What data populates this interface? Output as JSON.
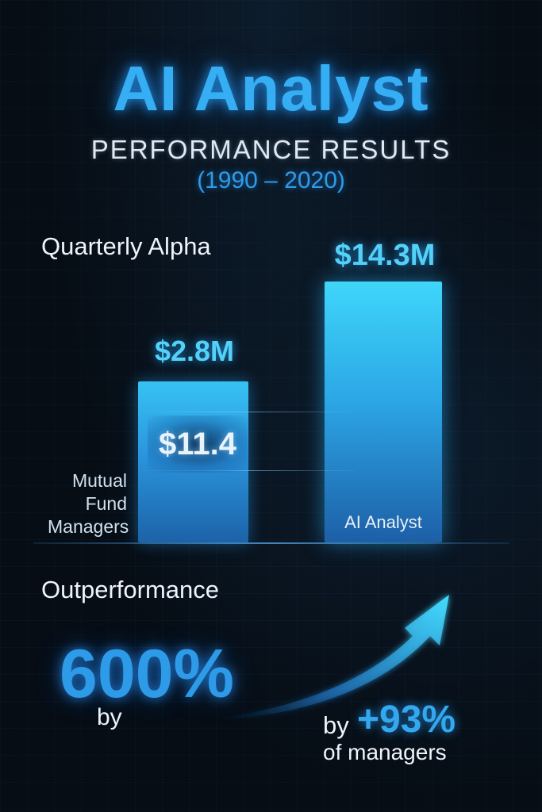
{
  "header": {
    "title": "AI Analyst",
    "subtitle": "PERFORMANCE RESULTS",
    "period": "(1990 – 2020)"
  },
  "chart_data": {
    "type": "bar",
    "title": "Quarterly Alpha",
    "categories": [
      "Mutual Fund Managers",
      "AI Analyst"
    ],
    "values": [
      2.8,
      14.3
    ],
    "value_labels": [
      "$2.8M",
      "$14.3M"
    ],
    "inner_label": "$11.4",
    "xlabel": "",
    "ylabel": "",
    "grid": false,
    "legend": "none"
  },
  "category_labels": {
    "mutual_line1": "Mutual",
    "mutual_line2": "Fund",
    "mutual_line3": "Managers",
    "ai": "AI Analyst"
  },
  "outperformance": {
    "label": "Outperformance",
    "big_value": "600%",
    "by_left": "by",
    "by_right": "by",
    "right_value": "+93%",
    "right_suffix": "of managers"
  },
  "colors": {
    "accent": "#35aef4",
    "bar_top": "#3ed6f9",
    "bar_bottom": "#1d5fa7",
    "background": "#060d15"
  },
  "icons": {
    "arrow": "trend-up-arrow-icon"
  }
}
